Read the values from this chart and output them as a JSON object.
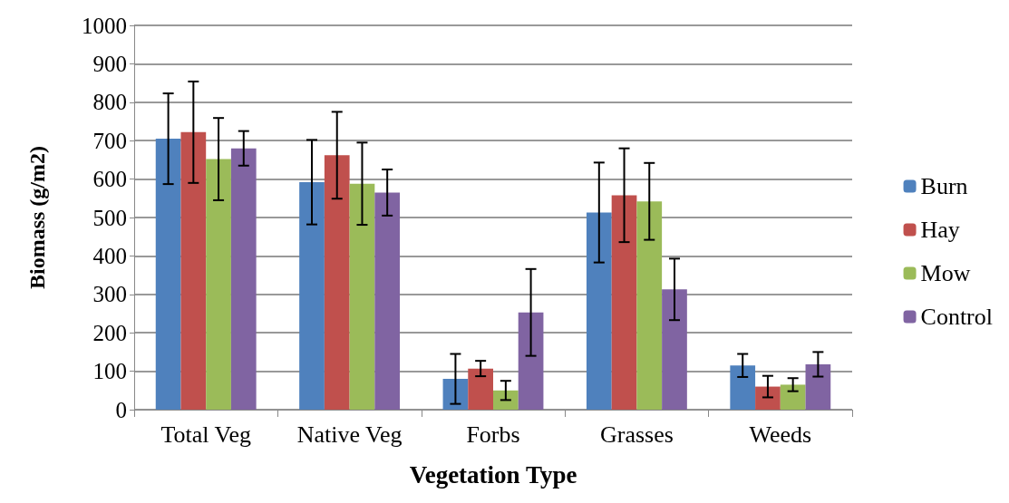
{
  "chart_data": {
    "type": "bar",
    "xlabel": "Vegetation Type",
    "ylabel": "Biomass (g/m2)",
    "categories": [
      "Total Veg",
      "Native Veg",
      "Forbs",
      "Grasses",
      "Weeds"
    ],
    "series": [
      {
        "name": "Burn",
        "color": "#4f81bd",
        "values": [
          705,
          592,
          80,
          513,
          115
        ],
        "errors": [
          118,
          110,
          65,
          130,
          30
        ]
      },
      {
        "name": "Hay",
        "color": "#c0504d",
        "values": [
          722,
          662,
          107,
          558,
          60
        ],
        "errors": [
          132,
          113,
          20,
          122,
          28
        ]
      },
      {
        "name": "Mow",
        "color": "#9bbb59",
        "values": [
          652,
          588,
          50,
          542,
          65
        ],
        "errors": [
          107,
          107,
          25,
          100,
          17
        ]
      },
      {
        "name": "Control",
        "color": "#8064a2",
        "values": [
          680,
          565,
          253,
          313,
          118
        ],
        "errors": [
          45,
          60,
          113,
          80,
          32
        ]
      }
    ],
    "ylim": [
      0,
      1000
    ],
    "yticks": [
      0,
      100,
      200,
      300,
      400,
      500,
      600,
      700,
      800,
      900,
      1000
    ],
    "grid": "y",
    "legend": "right"
  }
}
